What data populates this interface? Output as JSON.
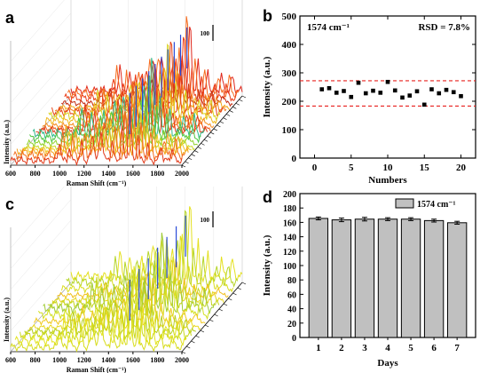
{
  "panels": {
    "a": {
      "label": "a"
    },
    "b": {
      "label": "b"
    },
    "c": {
      "label": "c"
    },
    "d": {
      "label": "d"
    }
  },
  "chart_data": [
    {
      "panel": "a",
      "type": "line",
      "xlabel": "Raman Shift (cm⁻¹)",
      "ylabel": "Intensity (a.u.)",
      "x_ticks": [
        "600",
        "800",
        "1000",
        "1200",
        "1400",
        "1600",
        "1800",
        "2000"
      ],
      "xlim": [
        600,
        2000
      ],
      "scale_bar": "100",
      "spectra_count": 20
    },
    {
      "panel": "b",
      "type": "scatter",
      "title_left": "1574 cm⁻¹",
      "title_right": "RSD = 7.8%",
      "xlabel": "Numbers",
      "ylabel": "Intensity (a.u.)",
      "xlim": [
        -2,
        22
      ],
      "ylim": [
        0,
        500
      ],
      "x_ticks": [
        0,
        5,
        10,
        15,
        20
      ],
      "y_ticks": [
        0,
        100,
        200,
        300,
        400,
        500
      ],
      "x": [
        1,
        2,
        3,
        4,
        5,
        6,
        7,
        8,
        9,
        10,
        11,
        12,
        13,
        14,
        15,
        16,
        17,
        18,
        19,
        20
      ],
      "y": [
        242,
        246,
        230,
        236,
        215,
        265,
        228,
        237,
        230,
        268,
        238,
        213,
        220,
        235,
        188,
        242,
        228,
        240,
        232,
        218
      ],
      "ref_lines": [
        272,
        183
      ]
    },
    {
      "panel": "c",
      "type": "line",
      "xlabel": "Raman Shift (cm⁻¹)",
      "ylabel": "Intensity (a.u.)",
      "x_ticks": [
        "600",
        "800",
        "1000",
        "1200",
        "1400",
        "1600",
        "1800",
        "2000"
      ],
      "xlim": [
        600,
        2000
      ],
      "scale_bar": "100",
      "spectra_count": 14
    },
    {
      "panel": "d",
      "type": "bar",
      "legend": "1574 cm⁻¹",
      "xlabel": "Days",
      "ylabel": "Intensity (a.u.)",
      "categories": [
        "1",
        "2",
        "3",
        "4",
        "5",
        "6",
        "7"
      ],
      "values": [
        165.5,
        163.5,
        164.5,
        164.5,
        164.5,
        162.5,
        159.5
      ],
      "errors": [
        2,
        2.5,
        2.5,
        2,
        2,
        2,
        2
      ],
      "ylim": [
        0,
        200
      ],
      "y_ticks": [
        0,
        20,
        40,
        60,
        80,
        100,
        120,
        140,
        160,
        180,
        200
      ],
      "bar_color": "#c0c0c0"
    }
  ]
}
